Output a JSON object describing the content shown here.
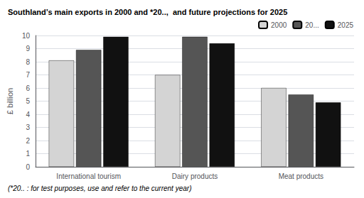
{
  "chart_data": {
    "type": "bar",
    "title": "Southland’s main exports in 2000 and *20..,  and future projections for 2025",
    "footnote": "(*20.. : for test purposes, use and refer to the current year)",
    "categories": [
      "International tourism",
      "Dairy products",
      "Meat products"
    ],
    "series": [
      {
        "name": "2000",
        "color": "#d4d4d4",
        "values": [
          8.1,
          7.0,
          6.0
        ]
      },
      {
        "name": "20...",
        "color": "#555555",
        "values": [
          8.9,
          9.9,
          5.5
        ]
      },
      {
        "name": "2025",
        "color": "#111111",
        "values": [
          9.9,
          9.4,
          4.9
        ]
      }
    ],
    "ylabel": "£ billion",
    "ylim": [
      0,
      10
    ],
    "yticks": [
      0,
      1,
      2,
      3,
      4,
      5,
      6,
      7,
      8,
      9,
      10
    ],
    "grid": true,
    "legend": "upper right"
  }
}
